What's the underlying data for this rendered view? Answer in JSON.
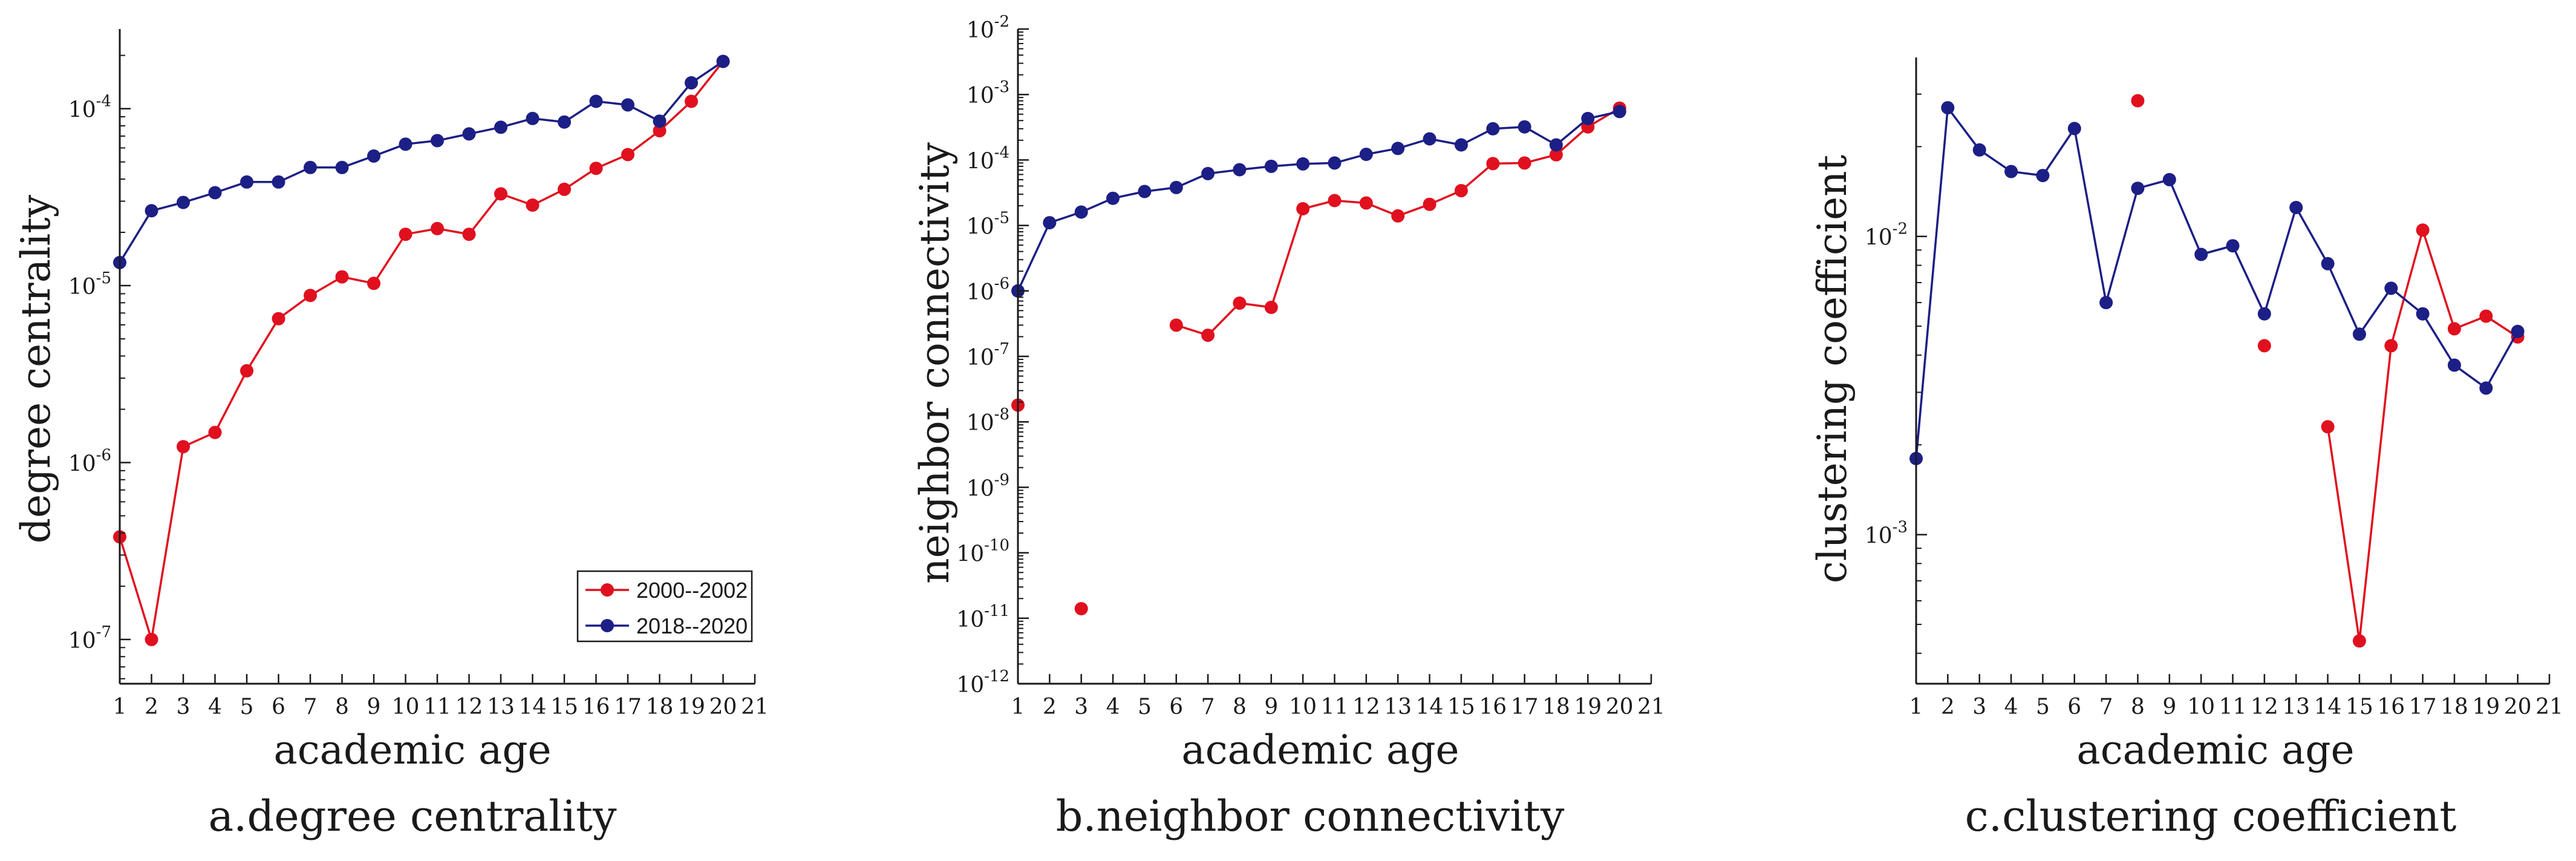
{
  "colors": {
    "series_2000": "#e0101e",
    "series_2018": "#1c1f85",
    "axis": "#1a1a1a"
  },
  "chart_data": [
    {
      "type": "line",
      "caption": "a.degree centrality",
      "xlabel": "academic age",
      "ylabel": "degree centrality",
      "yscale": "log",
      "xlim": [
        1,
        21
      ],
      "xticks": [
        "1",
        "2",
        "3",
        "4",
        "5",
        "6",
        "7",
        "8",
        "9",
        "10",
        "11",
        "12",
        "13",
        "14",
        "15",
        "16",
        "17",
        "18",
        "19",
        "20",
        "21"
      ],
      "ylim_log10": [
        -7.25,
        -3.55
      ],
      "yticks_exp": [
        -7,
        -6,
        -5,
        -4
      ],
      "legend": {
        "position": "bottom-right",
        "entries": [
          "2000--2002",
          "2018--2020"
        ]
      },
      "series": [
        {
          "name": "2000--2002",
          "color_key": "series_2000",
          "x": [
            1,
            2,
            3,
            4,
            5,
            6,
            7,
            8,
            9,
            10,
            11,
            12,
            13,
            14,
            15,
            16,
            17,
            18,
            19,
            20
          ],
          "y": [
            3.8e-07,
            1e-07,
            1.23e-06,
            1.48e-06,
            3.3e-06,
            6.5e-06,
            8.8e-06,
            1.12e-05,
            1.03e-05,
            1.95e-05,
            2.1e-05,
            1.95e-05,
            3.3e-05,
            2.85e-05,
            3.5e-05,
            4.6e-05,
            5.5e-05,
            7.5e-05,
            0.00011,
            0.000185
          ]
        },
        {
          "name": "2018--2020",
          "color_key": "series_2018",
          "x": [
            1,
            2,
            3,
            4,
            5,
            6,
            7,
            8,
            9,
            10,
            11,
            12,
            13,
            14,
            15,
            16,
            17,
            18,
            19,
            20
          ],
          "y": [
            1.35e-05,
            2.65e-05,
            2.95e-05,
            3.35e-05,
            3.85e-05,
            3.85e-05,
            4.65e-05,
            4.65e-05,
            5.4e-05,
            6.3e-05,
            6.6e-05,
            7.2e-05,
            7.85e-05,
            8.8e-05,
            8.4e-05,
            0.00011,
            0.000105,
            8.5e-05,
            0.00014,
            0.000185
          ]
        }
      ]
    },
    {
      "type": "line",
      "caption": "b.neighbor connectivity",
      "xlabel": "academic age",
      "ylabel": "neighbor connectivity",
      "yscale": "log",
      "xlim": [
        1,
        21
      ],
      "xticks": [
        "1",
        "2",
        "3",
        "4",
        "5",
        "6",
        "7",
        "8",
        "9",
        "10",
        "11",
        "12",
        "13",
        "14",
        "15",
        "16",
        "17",
        "18",
        "19",
        "20",
        "21"
      ],
      "ylim_log10": [
        -12,
        -2
      ],
      "yticks_exp": [
        -12,
        -11,
        -10,
        -9,
        -8,
        -7,
        -6,
        -5,
        -4,
        -3,
        -2
      ],
      "series": [
        {
          "name": "2000--2002",
          "color_key": "series_2000",
          "x": [
            1,
            3,
            6,
            7,
            8,
            9,
            10,
            11,
            12,
            13,
            14,
            15,
            16,
            17,
            18,
            19,
            20
          ],
          "y": [
            1.8e-08,
            1.4e-11,
            3e-07,
            2.1e-07,
            6.5e-07,
            5.6e-07,
            1.8e-05,
            2.4e-05,
            2.2e-05,
            1.4e-05,
            2.1e-05,
            3.4e-05,
            8.8e-05,
            9e-05,
            0.00012,
            0.00032,
            0.00062
          ],
          "connected_from_x": 6
        },
        {
          "name": "2018--2020",
          "color_key": "series_2018",
          "x": [
            1,
            2,
            3,
            4,
            5,
            6,
            7,
            8,
            9,
            10,
            11,
            12,
            13,
            14,
            15,
            16,
            17,
            18,
            19,
            20
          ],
          "y": [
            1e-06,
            1.1e-05,
            1.6e-05,
            2.6e-05,
            3.3e-05,
            3.8e-05,
            6.2e-05,
            7.1e-05,
            8e-05,
            8.7e-05,
            9e-05,
            0.000122,
            0.00015,
            0.00021,
            0.00017,
            0.0003,
            0.00032,
            0.00017,
            0.00043,
            0.00055
          ]
        }
      ]
    },
    {
      "type": "line",
      "caption": "c.clustering coefficient",
      "xlabel": "academic age",
      "ylabel": "clustering coefficient",
      "yscale": "log",
      "xlim": [
        1,
        21
      ],
      "xticks": [
        "1",
        "2",
        "3",
        "4",
        "5",
        "6",
        "7",
        "8",
        "9",
        "10",
        "11",
        "12",
        "13",
        "14",
        "15",
        "16",
        "17",
        "18",
        "19",
        "20",
        "21"
      ],
      "ylim_log10": [
        -3.5,
        -1.4
      ],
      "yticks_exp": [
        -3,
        -2
      ],
      "series": [
        {
          "name": "2000--2002",
          "color_key": "series_2000",
          "x": [
            8,
            12,
            14,
            15,
            16,
            17,
            18,
            19,
            20
          ],
          "y": [
            0.0285,
            0.0043,
            0.0023,
            0.00044,
            0.0043,
            0.0105,
            0.0049,
            0.0054,
            0.0046
          ],
          "isolated_x": [
            8,
            12
          ]
        },
        {
          "name": "2018--2020",
          "color_key": "series_2018",
          "x": [
            1,
            2,
            3,
            4,
            5,
            6,
            7,
            8,
            9,
            10,
            11,
            12,
            13,
            14,
            15,
            16,
            17,
            18,
            19,
            20
          ],
          "y": [
            0.0018,
            0.027,
            0.0195,
            0.0165,
            0.016,
            0.023,
            0.006,
            0.0145,
            0.0155,
            0.0087,
            0.0093,
            0.0055,
            0.0125,
            0.0081,
            0.0047,
            0.0067,
            0.0055,
            0.0037,
            0.0031,
            0.0048
          ]
        }
      ]
    }
  ]
}
